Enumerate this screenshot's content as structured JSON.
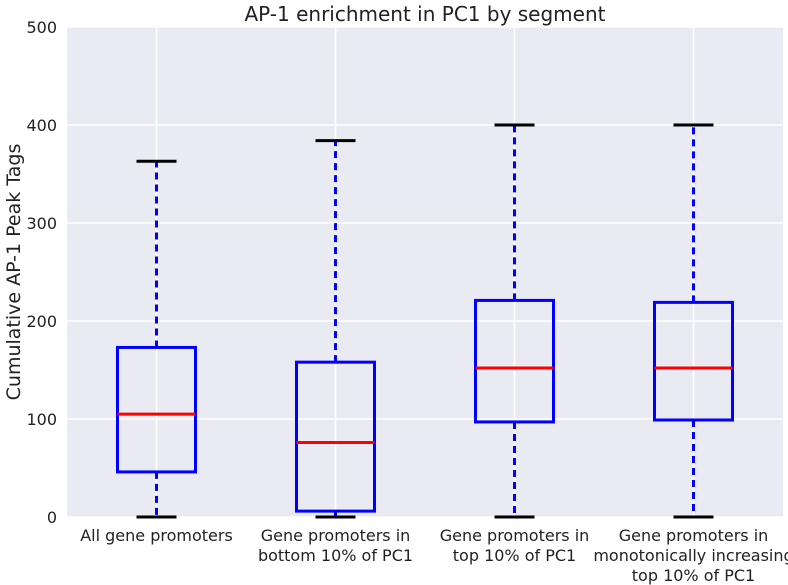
{
  "chart_data": {
    "type": "boxplot",
    "title": "AP-1 enrichment in PC1 by segment",
    "xlabel": "",
    "ylabel": "Cumulative AP-1 Peak Tags",
    "ylim": [
      0,
      500
    ],
    "yticks": [
      0,
      100,
      200,
      300,
      400,
      500
    ],
    "grid": true,
    "categories": [
      [
        "All gene promoters"
      ],
      [
        "Gene promoters in",
        "bottom 10% of PC1"
      ],
      [
        "Gene promoters in",
        "top 10% of PC1"
      ],
      [
        "Gene promoters in",
        "monotonically increasing",
        "top 10% of PC1"
      ]
    ],
    "boxes": [
      {
        "whisker_low": 0,
        "q1": 46,
        "median": 105,
        "q3": 173,
        "whisker_high": 363
      },
      {
        "whisker_low": 0,
        "q1": 6,
        "median": 76,
        "q3": 158,
        "whisker_high": 384
      },
      {
        "whisker_low": 0,
        "q1": 97,
        "median": 152,
        "q3": 221,
        "whisker_high": 400
      },
      {
        "whisker_low": 0,
        "q1": 99,
        "median": 152,
        "q3": 219,
        "whisker_high": 400
      }
    ],
    "colors": {
      "box": "#0000ff",
      "median": "#ff0000",
      "whisker": "#0000ff",
      "cap": "#000000",
      "background": "#eaeaf2",
      "grid": "#ffffff"
    }
  }
}
